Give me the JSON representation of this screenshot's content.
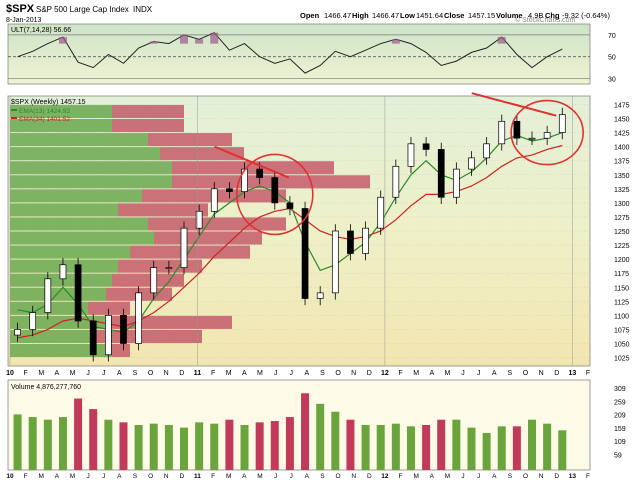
{
  "header": {
    "symbol": "$SPX",
    "name": "S&P 500 Large Cap Index",
    "exchange": "INDX",
    "date": "8-Jan-2013",
    "open_label": "Open",
    "open": "1466.47",
    "high_label": "High",
    "high": "1466.47",
    "low_label": "Low",
    "low": "1451.64",
    "close_label": "Close",
    "close": "1457.15",
    "volume_label": "Volume",
    "volume": "4.9B",
    "chg_label": "Chg",
    "chg": "-9.32 (-0.64%)",
    "watermark": "© StockCharts.com"
  },
  "colors": {
    "up": "#2a8a2a",
    "down": "#cc2222",
    "ema13": "#2a8a2a",
    "ema34": "#cc2222",
    "volume_up": "#6aa43c",
    "volume_down": "#c23a5a",
    "profile_green": "#6aa84f",
    "profile_red": "#c45a6a",
    "circle": "#e03030"
  },
  "chart_data": [
    {
      "type": "line",
      "panel": "ULT",
      "legend": "ULT(7,14,28) 56.66",
      "ylim": [
        25,
        80
      ],
      "y_ticks": [
        "70",
        "50",
        "30"
      ],
      "reference_lines": [
        70,
        50,
        30
      ],
      "x": [
        "2010-01",
        "2010-02",
        "2010-03",
        "2010-04",
        "2010-05",
        "2010-06",
        "2010-07",
        "2010-08",
        "2010-09",
        "2010-10",
        "2010-11",
        "2010-12",
        "2011-01",
        "2011-02",
        "2011-03",
        "2011-04",
        "2011-05",
        "2011-06",
        "2011-07",
        "2011-08",
        "2011-09",
        "2011-10",
        "2011-11",
        "2011-12",
        "2012-01",
        "2012-02",
        "2012-03",
        "2012-04",
        "2012-05",
        "2012-06",
        "2012-07",
        "2012-08",
        "2012-09",
        "2012-10",
        "2012-11",
        "2012-12",
        "2013-01"
      ],
      "values": [
        50,
        55,
        62,
        68,
        45,
        40,
        52,
        44,
        58,
        64,
        62,
        70,
        66,
        72,
        56,
        62,
        50,
        44,
        48,
        35,
        42,
        55,
        50,
        56,
        62,
        66,
        62,
        54,
        42,
        46,
        54,
        58,
        68,
        52,
        40,
        50,
        57
      ]
    },
    {
      "type": "candlestick",
      "panel": "price",
      "title": "$SPX (Weekly) 1457.15",
      "series": [
        {
          "name": "EMA(13) 1424.93"
        },
        {
          "name": "EMA(34) 1401.52"
        }
      ],
      "ylim": [
        1010,
        1490
      ],
      "y_ticks": [
        "1475",
        "1450",
        "1425",
        "1400",
        "1375",
        "1350",
        "1325",
        "1300",
        "1275",
        "1250",
        "1225",
        "1200",
        "1175",
        "1150",
        "1125",
        "1100",
        "1075",
        "1050",
        "1025"
      ],
      "x_ticks": [
        "10",
        "F",
        "M",
        "A",
        "M",
        "J",
        "J",
        "A",
        "S",
        "O",
        "N",
        "D",
        "11",
        "F",
        "M",
        "A",
        "M",
        "J",
        "J",
        "A",
        "S",
        "O",
        "N",
        "D",
        "12",
        "F",
        "M",
        "A",
        "M",
        "J",
        "J",
        "A",
        "S",
        "O",
        "N",
        "D",
        "13",
        "F"
      ],
      "x": [
        "2010-01",
        "2010-02",
        "2010-03",
        "2010-04",
        "2010-05",
        "2010-06",
        "2010-07",
        "2010-08",
        "2010-09",
        "2010-10",
        "2010-11",
        "2010-12",
        "2011-01",
        "2011-02",
        "2011-03",
        "2011-04",
        "2011-05",
        "2011-06",
        "2011-07",
        "2011-08",
        "2011-09",
        "2011-10",
        "2011-11",
        "2011-12",
        "2012-01",
        "2012-02",
        "2012-03",
        "2012-04",
        "2012-05",
        "2012-06",
        "2012-07",
        "2012-08",
        "2012-09",
        "2012-10",
        "2012-11",
        "2012-12",
        "2013-01"
      ],
      "close": [
        1075,
        1105,
        1165,
        1190,
        1090,
        1030,
        1100,
        1050,
        1140,
        1185,
        1185,
        1255,
        1285,
        1325,
        1320,
        1360,
        1345,
        1300,
        1290,
        1130,
        1140,
        1250,
        1210,
        1255,
        1310,
        1365,
        1405,
        1395,
        1310,
        1360,
        1380,
        1405,
        1445,
        1415,
        1415,
        1425,
        1457
      ],
      "ema13": [
        1110,
        1105,
        1120,
        1150,
        1120,
        1080,
        1075,
        1070,
        1090,
        1130,
        1160,
        1200,
        1240,
        1280,
        1300,
        1320,
        1330,
        1320,
        1300,
        1230,
        1180,
        1190,
        1210,
        1230,
        1265,
        1310,
        1350,
        1375,
        1350,
        1340,
        1355,
        1380,
        1410,
        1420,
        1410,
        1415,
        1425
      ],
      "ema34": [
        1060,
        1065,
        1075,
        1090,
        1095,
        1090,
        1085,
        1080,
        1090,
        1105,
        1125,
        1150,
        1175,
        1205,
        1230,
        1255,
        1275,
        1285,
        1290,
        1270,
        1250,
        1240,
        1235,
        1240,
        1250,
        1270,
        1295,
        1315,
        1315,
        1320,
        1330,
        1345,
        1365,
        1380,
        1385,
        1395,
        1402
      ],
      "volume_by_price": [
        {
          "price_from": 1025,
          "price_to": 1050,
          "up": 0.34,
          "down": 0.06
        },
        {
          "price_from": 1050,
          "price_to": 1075,
          "up": 0.28,
          "down": 0.36
        },
        {
          "price_from": 1075,
          "price_to": 1100,
          "up": 0.34,
          "down": 0.4
        },
        {
          "price_from": 1100,
          "price_to": 1125,
          "up": 0.26,
          "down": 0.14
        },
        {
          "price_from": 1125,
          "price_to": 1150,
          "up": 0.32,
          "down": 0.22
        },
        {
          "price_from": 1150,
          "price_to": 1175,
          "up": 0.34,
          "down": 0.24
        },
        {
          "price_from": 1175,
          "price_to": 1200,
          "up": 0.36,
          "down": 0.28
        },
        {
          "price_from": 1200,
          "price_to": 1225,
          "up": 0.4,
          "down": 0.4
        },
        {
          "price_from": 1225,
          "price_to": 1250,
          "up": 0.48,
          "down": 0.36
        },
        {
          "price_from": 1250,
          "price_to": 1275,
          "up": 0.46,
          "down": 0.46
        },
        {
          "price_from": 1275,
          "price_to": 1300,
          "up": 0.36,
          "down": 0.3
        },
        {
          "price_from": 1300,
          "price_to": 1325,
          "up": 0.44,
          "down": 0.48
        },
        {
          "price_from": 1325,
          "price_to": 1350,
          "up": 0.54,
          "down": 0.66
        },
        {
          "price_from": 1350,
          "price_to": 1375,
          "up": 0.54,
          "down": 0.54
        },
        {
          "price_from": 1375,
          "price_to": 1400,
          "up": 0.5,
          "down": 0.28
        },
        {
          "price_from": 1400,
          "price_to": 1425,
          "up": 0.46,
          "down": 0.28
        },
        {
          "price_from": 1425,
          "price_to": 1450,
          "up": 0.34,
          "down": 0.24
        },
        {
          "price_from": 1450,
          "price_to": 1475,
          "up": 0.34,
          "down": 0.24
        }
      ]
    },
    {
      "type": "bar",
      "panel": "volume",
      "legend": "Volume 4,876,277,760",
      "ylim": [
        0,
        340
      ],
      "y_ticks": [
        "309",
        "259",
        "209",
        "159",
        "109",
        "59"
      ],
      "x": [
        "2010-01",
        "2010-02",
        "2010-03",
        "2010-04",
        "2010-05",
        "2010-06",
        "2010-07",
        "2010-08",
        "2010-09",
        "2010-10",
        "2010-11",
        "2010-12",
        "2011-01",
        "2011-02",
        "2011-03",
        "2011-04",
        "2011-05",
        "2011-06",
        "2011-07",
        "2011-08",
        "2011-09",
        "2011-10",
        "2011-11",
        "2011-12",
        "2012-01",
        "2012-02",
        "2012-03",
        "2012-04",
        "2012-05",
        "2012-06",
        "2012-07",
        "2012-08",
        "2012-09",
        "2012-10",
        "2012-11",
        "2012-12",
        "2013-01"
      ],
      "values": [
        210,
        200,
        190,
        200,
        270,
        230,
        190,
        180,
        170,
        175,
        170,
        160,
        180,
        175,
        190,
        170,
        180,
        185,
        200,
        290,
        250,
        220,
        190,
        170,
        170,
        175,
        165,
        170,
        190,
        190,
        160,
        140,
        165,
        165,
        190,
        175,
        150
      ],
      "direction": [
        "up",
        "up",
        "up",
        "up",
        "down",
        "down",
        "up",
        "down",
        "up",
        "up",
        "up",
        "up",
        "up",
        "up",
        "down",
        "up",
        "down",
        "down",
        "down",
        "down",
        "up",
        "up",
        "down",
        "up",
        "up",
        "up",
        "up",
        "down",
        "down",
        "up",
        "up",
        "up",
        "up",
        "down",
        "up",
        "up",
        "up"
      ]
    }
  ]
}
